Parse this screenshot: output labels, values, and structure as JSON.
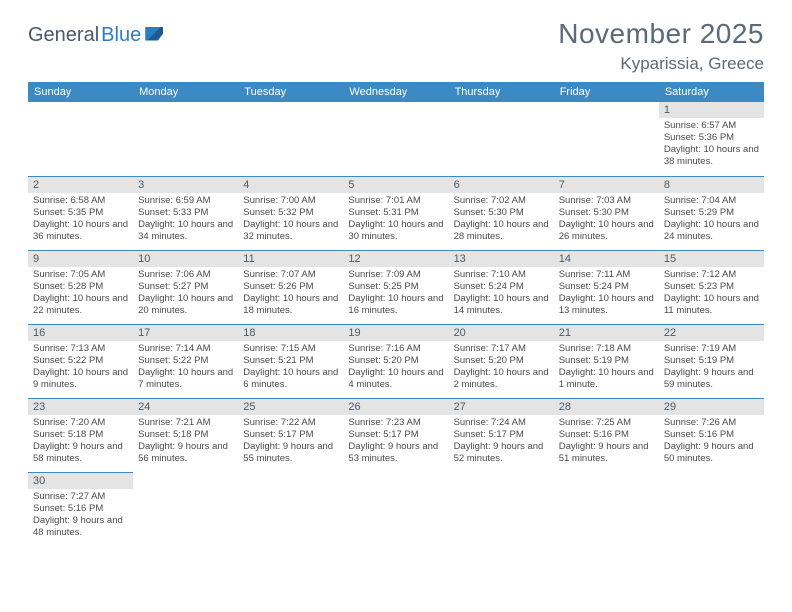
{
  "logo": {
    "text1": "General",
    "text2": "Blue"
  },
  "title": "November 2025",
  "location": "Kyparissia, Greece",
  "colors": {
    "header_bg": "#3b8ac4",
    "daynum_bg": "#e4e4e4",
    "row_border": "#3b8ac4",
    "text": "#4a4a4a",
    "title_color": "#5a6a78"
  },
  "dayHeaders": [
    "Sunday",
    "Monday",
    "Tuesday",
    "Wednesday",
    "Thursday",
    "Friday",
    "Saturday"
  ],
  "weeks": [
    [
      null,
      null,
      null,
      null,
      null,
      null,
      {
        "n": "1",
        "sr": "Sunrise: 6:57 AM",
        "ss": "Sunset: 5:36 PM",
        "dl": "Daylight: 10 hours and 38 minutes."
      }
    ],
    [
      {
        "n": "2",
        "sr": "Sunrise: 6:58 AM",
        "ss": "Sunset: 5:35 PM",
        "dl": "Daylight: 10 hours and 36 minutes."
      },
      {
        "n": "3",
        "sr": "Sunrise: 6:59 AM",
        "ss": "Sunset: 5:33 PM",
        "dl": "Daylight: 10 hours and 34 minutes."
      },
      {
        "n": "4",
        "sr": "Sunrise: 7:00 AM",
        "ss": "Sunset: 5:32 PM",
        "dl": "Daylight: 10 hours and 32 minutes."
      },
      {
        "n": "5",
        "sr": "Sunrise: 7:01 AM",
        "ss": "Sunset: 5:31 PM",
        "dl": "Daylight: 10 hours and 30 minutes."
      },
      {
        "n": "6",
        "sr": "Sunrise: 7:02 AM",
        "ss": "Sunset: 5:30 PM",
        "dl": "Daylight: 10 hours and 28 minutes."
      },
      {
        "n": "7",
        "sr": "Sunrise: 7:03 AM",
        "ss": "Sunset: 5:30 PM",
        "dl": "Daylight: 10 hours and 26 minutes."
      },
      {
        "n": "8",
        "sr": "Sunrise: 7:04 AM",
        "ss": "Sunset: 5:29 PM",
        "dl": "Daylight: 10 hours and 24 minutes."
      }
    ],
    [
      {
        "n": "9",
        "sr": "Sunrise: 7:05 AM",
        "ss": "Sunset: 5:28 PM",
        "dl": "Daylight: 10 hours and 22 minutes."
      },
      {
        "n": "10",
        "sr": "Sunrise: 7:06 AM",
        "ss": "Sunset: 5:27 PM",
        "dl": "Daylight: 10 hours and 20 minutes."
      },
      {
        "n": "11",
        "sr": "Sunrise: 7:07 AM",
        "ss": "Sunset: 5:26 PM",
        "dl": "Daylight: 10 hours and 18 minutes."
      },
      {
        "n": "12",
        "sr": "Sunrise: 7:09 AM",
        "ss": "Sunset: 5:25 PM",
        "dl": "Daylight: 10 hours and 16 minutes."
      },
      {
        "n": "13",
        "sr": "Sunrise: 7:10 AM",
        "ss": "Sunset: 5:24 PM",
        "dl": "Daylight: 10 hours and 14 minutes."
      },
      {
        "n": "14",
        "sr": "Sunrise: 7:11 AM",
        "ss": "Sunset: 5:24 PM",
        "dl": "Daylight: 10 hours and 13 minutes."
      },
      {
        "n": "15",
        "sr": "Sunrise: 7:12 AM",
        "ss": "Sunset: 5:23 PM",
        "dl": "Daylight: 10 hours and 11 minutes."
      }
    ],
    [
      {
        "n": "16",
        "sr": "Sunrise: 7:13 AM",
        "ss": "Sunset: 5:22 PM",
        "dl": "Daylight: 10 hours and 9 minutes."
      },
      {
        "n": "17",
        "sr": "Sunrise: 7:14 AM",
        "ss": "Sunset: 5:22 PM",
        "dl": "Daylight: 10 hours and 7 minutes."
      },
      {
        "n": "18",
        "sr": "Sunrise: 7:15 AM",
        "ss": "Sunset: 5:21 PM",
        "dl": "Daylight: 10 hours and 6 minutes."
      },
      {
        "n": "19",
        "sr": "Sunrise: 7:16 AM",
        "ss": "Sunset: 5:20 PM",
        "dl": "Daylight: 10 hours and 4 minutes."
      },
      {
        "n": "20",
        "sr": "Sunrise: 7:17 AM",
        "ss": "Sunset: 5:20 PM",
        "dl": "Daylight: 10 hours and 2 minutes."
      },
      {
        "n": "21",
        "sr": "Sunrise: 7:18 AM",
        "ss": "Sunset: 5:19 PM",
        "dl": "Daylight: 10 hours and 1 minute."
      },
      {
        "n": "22",
        "sr": "Sunrise: 7:19 AM",
        "ss": "Sunset: 5:19 PM",
        "dl": "Daylight: 9 hours and 59 minutes."
      }
    ],
    [
      {
        "n": "23",
        "sr": "Sunrise: 7:20 AM",
        "ss": "Sunset: 5:18 PM",
        "dl": "Daylight: 9 hours and 58 minutes."
      },
      {
        "n": "24",
        "sr": "Sunrise: 7:21 AM",
        "ss": "Sunset: 5:18 PM",
        "dl": "Daylight: 9 hours and 56 minutes."
      },
      {
        "n": "25",
        "sr": "Sunrise: 7:22 AM",
        "ss": "Sunset: 5:17 PM",
        "dl": "Daylight: 9 hours and 55 minutes."
      },
      {
        "n": "26",
        "sr": "Sunrise: 7:23 AM",
        "ss": "Sunset: 5:17 PM",
        "dl": "Daylight: 9 hours and 53 minutes."
      },
      {
        "n": "27",
        "sr": "Sunrise: 7:24 AM",
        "ss": "Sunset: 5:17 PM",
        "dl": "Daylight: 9 hours and 52 minutes."
      },
      {
        "n": "28",
        "sr": "Sunrise: 7:25 AM",
        "ss": "Sunset: 5:16 PM",
        "dl": "Daylight: 9 hours and 51 minutes."
      },
      {
        "n": "29",
        "sr": "Sunrise: 7:26 AM",
        "ss": "Sunset: 5:16 PM",
        "dl": "Daylight: 9 hours and 50 minutes."
      }
    ],
    [
      {
        "n": "30",
        "sr": "Sunrise: 7:27 AM",
        "ss": "Sunset: 5:16 PM",
        "dl": "Daylight: 9 hours and 48 minutes."
      },
      null,
      null,
      null,
      null,
      null,
      null
    ]
  ]
}
